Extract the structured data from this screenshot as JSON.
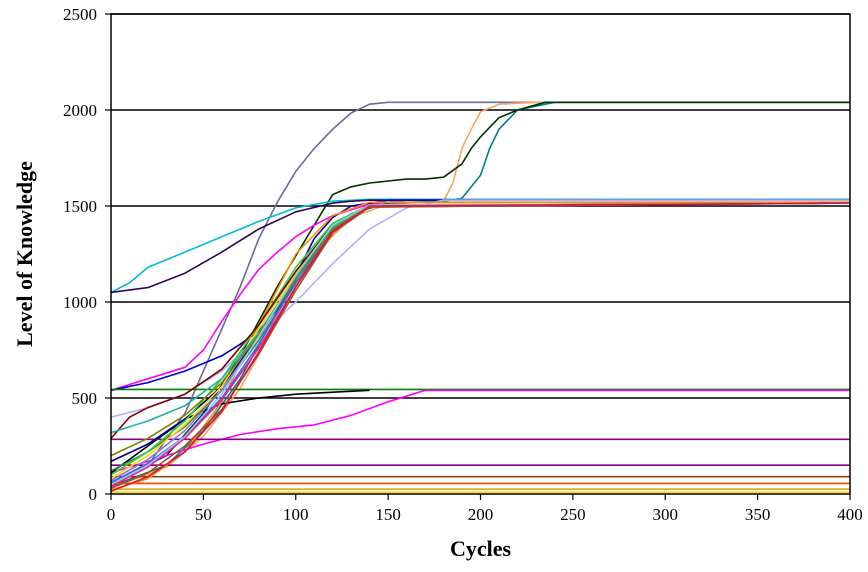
{
  "chart_data": {
    "type": "line",
    "title": "",
    "xlabel": "Cycles",
    "ylabel": "Level of Knowledge",
    "xlim": [
      0,
      400
    ],
    "ylim": [
      0,
      2500
    ],
    "xticks": [
      0,
      50,
      100,
      150,
      200,
      250,
      300,
      350,
      400
    ],
    "yticks": [
      0,
      500,
      1000,
      1500,
      2000,
      2500
    ],
    "grid": "horizontal",
    "legend": "none",
    "series": [
      {
        "color": "#6b6b9e",
        "x": [
          0,
          20,
          40,
          60,
          70,
          80,
          90,
          100,
          110,
          120,
          130,
          140,
          150,
          400
        ],
        "y": [
          55,
          150,
          420,
          860,
          1080,
          1330,
          1520,
          1680,
          1800,
          1900,
          1985,
          2030,
          2040,
          2040
        ]
      },
      {
        "color": "#f4a460",
        "x": [
          0,
          30,
          50,
          70,
          90,
          110,
          130,
          150,
          170,
          180,
          185,
          190,
          195,
          200,
          210,
          230,
          400
        ],
        "y": [
          30,
          140,
          300,
          550,
          900,
          1250,
          1440,
          1510,
          1520,
          1525,
          1620,
          1800,
          1900,
          1990,
          2030,
          2040,
          2040
        ]
      },
      {
        "color": "#008080",
        "x": [
          0,
          30,
          50,
          70,
          90,
          110,
          130,
          150,
          180,
          190,
          200,
          205,
          210,
          220,
          240,
          400
        ],
        "y": [
          40,
          150,
          330,
          600,
          950,
          1280,
          1460,
          1515,
          1525,
          1540,
          1660,
          1800,
          1900,
          2000,
          2040,
          2040
        ]
      },
      {
        "color": "#003300",
        "x": [
          0,
          30,
          50,
          70,
          90,
          110,
          120,
          130,
          140,
          150,
          160,
          170,
          180,
          190,
          195,
          200,
          210,
          220,
          235,
          250,
          400
        ],
        "y": [
          60,
          200,
          420,
          720,
          1080,
          1400,
          1560,
          1600,
          1620,
          1630,
          1640,
          1640,
          1650,
          1720,
          1800,
          1860,
          1960,
          2000,
          2040,
          2040,
          2040
        ]
      },
      {
        "color": "#00bcd4",
        "x": [
          0,
          10,
          20,
          40,
          60,
          80,
          100,
          120,
          140,
          160,
          400
        ],
        "y": [
          1050,
          1100,
          1180,
          1260,
          1340,
          1420,
          1490,
          1525,
          1535,
          1535,
          1535
        ]
      },
      {
        "color": "#2e0854",
        "x": [
          0,
          20,
          40,
          60,
          80,
          100,
          120,
          130,
          140,
          400
        ],
        "y": [
          1050,
          1075,
          1150,
          1260,
          1380,
          1470,
          1515,
          1525,
          1530,
          1530
        ]
      },
      {
        "color": "#ff00ff",
        "x": [
          0,
          20,
          40,
          50,
          60,
          70,
          80,
          90,
          100,
          110,
          120,
          140,
          160,
          400
        ],
        "y": [
          540,
          600,
          660,
          750,
          900,
          1040,
          1170,
          1260,
          1340,
          1400,
          1450,
          1510,
          1530,
          1530
        ]
      },
      {
        "color": "#0000cc",
        "x": [
          0,
          20,
          40,
          60,
          70,
          80,
          90,
          100,
          110,
          120,
          130,
          150,
          400
        ],
        "y": [
          540,
          580,
          640,
          720,
          780,
          850,
          960,
          1140,
          1330,
          1440,
          1500,
          1530,
          1530
        ]
      },
      {
        "color": "#b0b0ff",
        "x": [
          0,
          20,
          40,
          60,
          80,
          100,
          120,
          140,
          160,
          180,
          400
        ],
        "y": [
          400,
          450,
          520,
          640,
          820,
          1000,
          1200,
          1380,
          1490,
          1530,
          1530
        ]
      },
      {
        "color": "#008000",
        "x": [
          0,
          400
        ],
        "y": [
          545,
          545
        ]
      },
      {
        "color": "#ff00ff",
        "x": [
          0,
          30,
          50,
          70,
          90,
          110,
          130,
          150,
          170,
          400
        ],
        "y": [
          110,
          200,
          260,
          310,
          340,
          360,
          410,
          480,
          540,
          540
        ]
      },
      {
        "color": "#000000",
        "x": [
          0,
          20,
          40,
          60,
          80,
          100,
          120,
          140
        ],
        "y": [
          110,
          250,
          390,
          470,
          500,
          520,
          530,
          540
        ]
      },
      {
        "color": "#8b008b",
        "x": [
          0,
          400
        ],
        "y": [
          285,
          285
        ]
      },
      {
        "color": "#800080",
        "x": [
          0,
          400
        ],
        "y": [
          150,
          150
        ]
      },
      {
        "color": "#8b4513",
        "x": [
          0,
          400
        ],
        "y": [
          90,
          90
        ]
      },
      {
        "color": "#ff4500",
        "x": [
          0,
          400
        ],
        "y": [
          55,
          55
        ]
      },
      {
        "color": "#daa520",
        "x": [
          0,
          400
        ],
        "y": [
          25,
          25
        ]
      },
      {
        "color": "#ffd700",
        "x": [
          0,
          400
        ],
        "y": [
          10,
          10
        ]
      },
      {
        "color": "#ff8c00",
        "x": [
          0,
          20,
          40,
          60,
          80,
          100,
          120,
          140,
          400
        ],
        "y": [
          20,
          80,
          220,
          480,
          880,
          1250,
          1450,
          1520,
          1520
        ]
      },
      {
        "color": "#00008b",
        "x": [
          0,
          20,
          40,
          60,
          80,
          100,
          120,
          140,
          400
        ],
        "y": [
          170,
          260,
          390,
          560,
          820,
          1120,
          1380,
          1500,
          1515
        ]
      },
      {
        "color": "#2e8b57",
        "x": [
          0,
          20,
          40,
          60,
          80,
          100,
          120,
          140,
          400
        ],
        "y": [
          120,
          220,
          350,
          540,
          800,
          1100,
          1370,
          1500,
          1515
        ]
      },
      {
        "color": "#ffd700",
        "x": [
          0,
          20,
          40,
          60,
          80,
          100,
          120,
          140,
          400
        ],
        "y": [
          80,
          200,
          360,
          560,
          860,
          1150,
          1390,
          1505,
          1515
        ]
      },
      {
        "color": "#4169e1",
        "x": [
          0,
          20,
          40,
          60,
          80,
          100,
          120,
          140,
          400
        ],
        "y": [
          60,
          160,
          300,
          500,
          780,
          1100,
          1380,
          1500,
          1515
        ]
      },
      {
        "color": "#ff1493",
        "x": [
          0,
          20,
          40,
          60,
          80,
          100,
          120,
          140,
          400
        ],
        "y": [
          40,
          140,
          290,
          490,
          760,
          1080,
          1360,
          1495,
          1515
        ]
      },
      {
        "color": "#32cd32",
        "x": [
          0,
          20,
          40,
          60,
          80,
          100,
          120,
          140,
          400
        ],
        "y": [
          100,
          220,
          380,
          600,
          880,
          1180,
          1410,
          1505,
          1515
        ]
      },
      {
        "color": "#800000",
        "x": [
          0,
          10,
          20,
          40,
          60,
          80,
          100,
          120,
          140,
          400
        ],
        "y": [
          290,
          400,
          450,
          520,
          650,
          880,
          1160,
          1400,
          1505,
          1515
        ]
      },
      {
        "color": "#9370db",
        "x": [
          0,
          20,
          40,
          60,
          80,
          100,
          120,
          140,
          400
        ],
        "y": [
          70,
          180,
          330,
          540,
          820,
          1120,
          1380,
          1500,
          1515
        ]
      },
      {
        "color": "#20b2aa",
        "x": [
          0,
          20,
          40,
          60,
          80,
          100,
          120,
          140,
          400
        ],
        "y": [
          320,
          380,
          460,
          600,
          840,
          1130,
          1390,
          1500,
          1515
        ]
      },
      {
        "color": "#a0522d",
        "x": [
          0,
          20,
          40,
          60,
          80,
          100,
          120,
          140,
          400
        ],
        "y": [
          30,
          110,
          250,
          440,
          730,
          1060,
          1360,
          1495,
          1515
        ]
      },
      {
        "color": "#808000",
        "x": [
          0,
          20,
          40,
          60,
          80,
          100,
          120,
          140,
          400
        ],
        "y": [
          200,
          290,
          410,
          580,
          830,
          1120,
          1380,
          1500,
          1515
        ]
      },
      {
        "color": "#87ceeb",
        "x": [
          0,
          20,
          40,
          60,
          80,
          100,
          120,
          140,
          400
        ],
        "y": [
          50,
          150,
          300,
          520,
          820,
          1140,
          1400,
          1505,
          1515
        ]
      },
      {
        "color": "#dc143c",
        "x": [
          0,
          20,
          40,
          60,
          80,
          100,
          120,
          140,
          400
        ],
        "y": [
          15,
          90,
          220,
          430,
          740,
          1080,
          1370,
          1500,
          1515
        ]
      }
    ]
  }
}
